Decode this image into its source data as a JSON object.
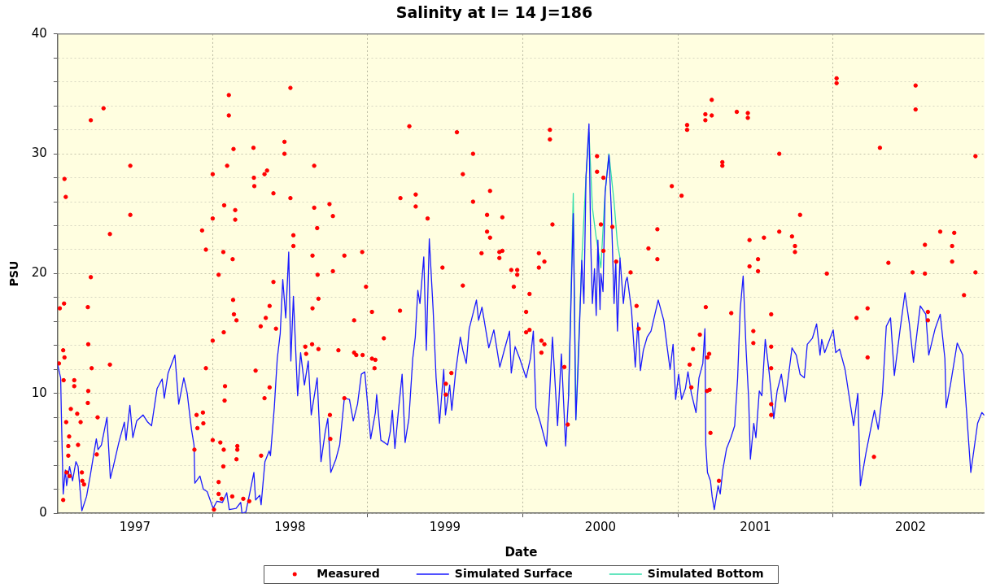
{
  "chart_data": {
    "type": "line",
    "title": "Salinity at I= 14 J=186",
    "xlabel": "Date",
    "ylabel": "PSU",
    "xlim": [
      "1997-01-01",
      "2002-12-23"
    ],
    "xticks": [
      {
        "value": "1997-07-02",
        "label": "1997"
      },
      {
        "value": "1998-01-01",
        "label": null
      },
      {
        "value": "1998-07-02",
        "label": "1998"
      },
      {
        "value": "1999-01-01",
        "label": null
      },
      {
        "value": "1999-07-02",
        "label": "1999"
      },
      {
        "value": "2000-01-01",
        "label": null
      },
      {
        "value": "2000-07-02",
        "label": "2000"
      },
      {
        "value": "2001-01-01",
        "label": null
      },
      {
        "value": "2001-07-02",
        "label": "2001"
      },
      {
        "value": "2002-01-01",
        "label": null
      },
      {
        "value": "2002-07-02",
        "label": "2002"
      }
    ],
    "ylim": [
      0,
      40
    ],
    "yticks": [
      0,
      {
        "value": 2,
        "label": null
      },
      {
        "value": 4,
        "label": null
      },
      {
        "value": 6,
        "label": null
      },
      {
        "value": 8,
        "label": null
      },
      10,
      {
        "value": 12,
        "label": null
      },
      {
        "value": 14,
        "label": null
      },
      {
        "value": 16,
        "label": null
      },
      {
        "value": 18,
        "label": null
      },
      20,
      {
        "value": 22,
        "label": null
      },
      {
        "value": 24,
        "label": null
      },
      {
        "value": 26,
        "label": null
      },
      {
        "value": 28,
        "label": null
      },
      30,
      {
        "value": 32,
        "label": null
      },
      {
        "value": 34,
        "label": null
      },
      {
        "value": 36,
        "label": null
      },
      {
        "value": 38,
        "label": null
      },
      40
    ],
    "grid": true,
    "legend": "bottom",
    "series": [
      {
        "name": "Measured",
        "type": "scatter",
        "marker": "circle",
        "color": "#ff0000",
        "x": [
          "1997-01-04",
          "1997-01-06",
          "1997-01-14",
          "1997-01-14",
          "1997-01-15",
          "1997-01-16",
          "1997-01-17",
          "1997-01-17",
          "1997-01-20",
          "1997-01-21",
          "1997-01-22",
          "1997-01-26",
          "1997-01-26",
          "1997-01-28",
          "1997-01-29",
          "1997-02-01",
          "1997-02-09",
          "1997-02-09",
          "1997-02-16",
          "1997-02-18",
          "1997-02-24",
          "1997-02-27",
          "1997-02-28",
          "1997-03-04",
          "1997-03-13",
          "1997-03-13",
          "1997-03-14",
          "1997-03-14",
          "1997-03-20",
          "1997-03-20",
          "1997-03-22",
          "1997-04-03",
          "1997-04-05",
          "1997-04-19",
          "1997-05-04",
          "1997-05-04",
          "1997-06-21",
          "1997-06-21",
          "1997-11-19",
          "1997-11-24",
          "1997-11-26",
          "1997-12-07",
          "1997-12-09",
          "1997-12-10",
          "1997-12-16",
          "1997-12-16",
          "1998-01-01",
          "1998-01-01",
          "1998-01-01",
          "1998-01-01",
          "1998-01-04",
          "1998-01-15",
          "1998-01-15",
          "1998-01-15",
          "1998-01-19",
          "1998-01-22",
          "1998-01-26",
          "1998-01-26",
          "1998-01-27",
          "1998-01-27",
          "1998-01-28",
          "1998-01-29",
          "1998-01-30",
          "1998-02-04",
          "1998-02-08",
          "1998-02-08",
          "1998-02-16",
          "1998-02-17",
          "1998-02-18",
          "1998-02-19",
          "1998-02-20",
          "1998-02-23",
          "1998-02-23",
          "1998-02-26",
          "1998-02-26",
          "1998-02-28",
          "1998-02-28",
          "1998-03-14",
          "1998-03-28",
          "1998-04-07",
          "1998-04-08",
          "1998-04-09",
          "1998-04-12",
          "1998-04-24",
          "1998-04-25",
          "1998-05-03",
          "1998-05-03",
          "1998-05-06",
          "1998-05-09",
          "1998-05-15",
          "1998-05-15",
          "1998-05-24",
          "1998-05-24",
          "1998-05-30",
          "1998-06-19",
          "1998-06-19",
          "1998-07-03",
          "1998-07-03",
          "1998-07-10",
          "1998-07-10",
          "1998-08-07",
          "1998-08-09",
          "1998-08-23",
          "1998-08-24",
          "1998-08-24",
          "1998-08-28",
          "1998-08-28",
          "1998-09-04",
          "1998-09-05",
          "1998-09-07",
          "1998-09-07",
          "1998-10-03",
          "1998-10-04",
          "1998-10-05",
          "1998-10-11",
          "1998-10-11",
          "1998-10-24",
          "1998-11-07",
          "1998-11-07",
          "1998-11-30",
          "1998-11-30",
          "1998-12-05",
          "1998-12-19",
          "1998-12-20",
          "1998-12-28",
          "1999-01-11",
          "1999-01-11",
          "1999-01-17",
          "1999-01-19",
          "1999-02-08",
          "1999-03-18",
          "1999-03-19",
          "1999-04-09",
          "1999-04-24",
          "1999-04-24",
          "1999-05-22",
          "1999-06-26",
          "1999-07-04",
          "1999-07-04",
          "1999-07-17",
          "1999-07-30",
          "1999-08-13",
          "1999-08-13",
          "1999-09-06",
          "1999-09-06",
          "1999-09-26",
          "1999-10-09",
          "1999-10-09",
          "1999-10-16",
          "1999-10-16",
          "1999-11-07",
          "1999-11-07",
          "1999-11-14",
          "1999-11-14",
          "1999-12-05",
          "1999-12-11",
          "1999-12-19",
          "1999-12-19",
          "2000-01-09",
          "2000-01-09",
          "2000-01-17",
          "2000-01-17",
          "2000-02-08",
          "2000-02-08",
          "2000-02-14",
          "2000-02-14",
          "2000-02-21",
          "2000-02-21",
          "2000-03-05",
          "2000-03-05",
          "2000-03-11",
          "2000-04-08",
          "2000-04-16",
          "2000-06-24",
          "2000-06-24",
          "2000-07-03",
          "2000-07-09",
          "2000-07-09",
          "2000-07-30",
          "2000-08-08",
          "2000-09-11",
          "2000-09-25",
          "2000-09-30",
          "2000-10-23",
          "2000-11-13",
          "2000-11-13",
          "2000-12-17",
          "2001-01-09",
          "2001-01-22",
          "2001-01-22",
          "2001-01-28",
          "2001-02-01",
          "2001-02-05",
          "2001-02-21",
          "2001-03-06",
          "2001-03-06",
          "2001-03-07",
          "2001-03-10",
          "2001-03-11",
          "2001-03-15",
          "2001-03-16",
          "2001-03-18",
          "2001-03-21",
          "2001-03-21",
          "2001-04-07",
          "2001-04-15",
          "2001-04-15",
          "2001-05-06",
          "2001-05-19",
          "2001-06-14",
          "2001-06-14",
          "2001-06-18",
          "2001-06-18",
          "2001-06-27",
          "2001-06-27",
          "2001-07-08",
          "2001-07-08",
          "2001-07-22",
          "2001-08-08",
          "2001-08-08",
          "2001-08-08",
          "2001-08-08",
          "2001-08-08",
          "2001-08-27",
          "2001-08-27",
          "2001-09-26",
          "2001-10-03",
          "2001-10-03",
          "2001-10-15",
          "2001-12-17",
          "2002-01-09",
          "2002-01-09",
          "2002-02-25",
          "2002-03-23",
          "2002-03-23",
          "2002-04-07",
          "2002-04-21",
          "2002-05-11",
          "2002-07-07",
          "2002-07-14",
          "2002-07-14",
          "2002-08-05",
          "2002-08-05",
          "2002-08-12",
          "2002-08-12",
          "2002-09-10",
          "2002-10-08",
          "2002-10-08",
          "2002-10-13",
          "2002-11-05",
          "2002-12-02",
          "2002-12-02"
        ],
        "values": [
          12.5,
          17.1,
          13.6,
          1.1,
          11.1,
          17.5,
          27.9,
          13.0,
          26.4,
          7.6,
          3.4,
          5.6,
          4.8,
          6.4,
          3.1,
          8.7,
          11.1,
          10.6,
          8.3,
          5.7,
          7.6,
          3.4,
          2.7,
          2.4,
          17.2,
          9.2,
          14.1,
          10.2,
          32.8,
          19.7,
          12.1,
          4.9,
          8.0,
          33.8,
          23.3,
          12.4,
          29.0,
          24.9,
          5.3,
          8.2,
          7.1,
          23.6,
          8.4,
          7.5,
          22.0,
          12.1,
          28.3,
          24.6,
          14.4,
          6.1,
          0.3,
          19.9,
          2.6,
          1.6,
          5.9,
          1.2,
          21.8,
          3.9,
          5.3,
          15.1,
          25.7,
          9.4,
          10.6,
          29.0,
          34.9,
          33.2,
          1.4,
          21.2,
          17.8,
          30.4,
          16.6,
          25.3,
          24.5,
          16.1,
          4.5,
          5.3,
          5.6,
          1.2,
          1.0,
          30.5,
          28.0,
          27.3,
          11.9,
          15.6,
          4.8,
          28.3,
          9.6,
          16.3,
          28.6,
          10.5,
          17.3,
          26.7,
          19.3,
          15.4,
          31.0,
          30.0,
          35.5,
          26.3,
          23.2,
          22.3,
          13.9,
          13.3,
          14.1,
          17.1,
          21.5,
          29.0,
          25.5,
          23.8,
          19.9,
          17.9,
          13.7,
          25.8,
          8.2,
          6.2,
          24.8,
          20.2,
          13.6,
          21.5,
          9.6,
          16.1,
          13.4,
          13.2,
          21.8,
          13.2,
          18.9,
          16.8,
          12.9,
          12.1,
          12.8,
          14.6,
          16.9,
          26.3,
          32.3,
          26.6,
          25.6,
          24.6,
          20.5,
          10.8,
          9.9,
          11.7,
          31.8,
          19.0,
          28.3,
          30.0,
          26.0,
          21.7,
          24.9,
          23.5,
          26.9,
          23.0,
          21.8,
          21.3,
          24.7,
          21.9,
          20.3,
          18.9,
          20.3,
          19.9,
          16.8,
          15.1,
          18.3,
          15.3,
          21.7,
          20.5,
          14.4,
          13.4,
          21.0,
          14.1,
          32.0,
          31.2,
          24.1,
          12.2,
          7.4,
          29.8,
          28.5,
          24.1,
          28.0,
          21.9,
          23.9,
          21.0,
          20.1,
          17.3,
          15.4,
          22.1,
          23.7,
          21.2,
          27.3,
          26.5,
          32.4,
          32.0,
          12.4,
          10.5,
          13.7,
          14.9,
          33.3,
          32.8,
          17.2,
          10.2,
          13.0,
          13.3,
          10.3,
          6.7,
          34.5,
          33.2,
          2.7,
          29.3,
          29.0,
          16.7,
          33.5,
          33.4,
          33.0,
          22.8,
          20.6,
          15.2,
          14.2,
          21.2,
          20.2,
          23.0,
          16.6,
          13.9,
          12.1,
          9.1,
          8.2,
          30.0,
          23.5,
          23.1,
          22.3,
          21.8,
          24.9,
          20.0,
          36.3,
          35.9,
          16.3,
          17.1,
          13.0,
          4.7,
          30.5,
          20.9,
          20.1,
          35.7,
          33.7,
          22.4,
          20.0,
          16.8,
          16.1,
          23.5,
          22.3,
          21.0,
          23.4,
          18.2,
          29.8,
          20.1
        ]
      },
      {
        "name": "Simulated Surface",
        "color": "#1a1aff",
        "x": [
          "1997-01-01",
          "1997-01-08",
          "1997-01-10",
          "1997-01-14",
          "1997-01-19",
          "1997-01-22",
          "1997-01-29",
          "1997-02-05",
          "1997-02-13",
          "1997-02-18",
          "1997-02-27",
          "1997-03-10",
          "1997-03-19",
          "1997-03-25",
          "1997-04-02",
          "1997-04-06",
          "1997-04-14",
          "1997-04-27",
          "1997-05-05",
          "1997-05-12",
          "1997-05-25",
          "1997-06-07",
          "1997-06-11",
          "1997-06-20",
          "1997-06-27",
          "1997-07-06",
          "1997-07-21",
          "1997-08-01",
          "1997-08-10",
          "1997-08-23",
          "1997-09-04",
          "1997-09-09",
          "1997-09-18",
          "1997-10-04",
          "1997-10-13",
          "1997-10-25",
          "1997-11-02",
          "1997-11-12",
          "1997-11-18",
          "1997-11-20",
          "1997-12-02",
          "1997-12-10",
          "1997-12-19",
          "1998-01-02",
          "1998-01-11",
          "1998-01-24",
          "1998-02-03",
          "1998-02-09",
          "1998-02-25",
          "1998-03-08",
          "1998-03-11",
          "1998-03-20",
          "1998-03-30",
          "1998-04-08",
          "1998-04-12",
          "1998-04-22",
          "1998-04-25",
          "1998-05-04",
          "1998-05-14",
          "1998-05-17",
          "1998-05-26",
          "1998-06-02",
          "1998-06-09",
          "1998-06-15",
          "1998-06-22",
          "1998-06-29",
          "1998-07-04",
          "1998-07-10",
          "1998-07-20",
          "1998-07-27",
          "1998-08-05",
          "1998-08-14",
          "1998-08-21",
          "1998-09-04",
          "1998-09-13",
          "1998-09-23",
          "1998-09-29",
          "1998-10-06",
          "1998-10-18",
          "1998-10-27",
          "1998-11-07",
          "1998-11-19",
          "1998-11-28",
          "1998-12-08",
          "1998-12-17",
          "1998-12-25",
          "1999-01-02",
          "1999-01-08",
          "1999-01-19",
          "1999-01-22",
          "1999-02-01",
          "1999-02-17",
          "1999-02-23",
          "1999-02-28",
          "1999-03-06",
          "1999-03-15",
          "1999-03-23",
          "1999-03-30",
          "1999-04-08",
          "1999-04-17",
          "1999-04-23",
          "1999-04-29",
          "1999-05-04",
          "1999-05-13",
          "1999-05-19",
          "1999-05-26",
          "1999-06-04",
          "1999-06-11",
          "1999-06-19",
          "1999-06-29",
          "1999-07-03",
          "1999-07-13",
          "1999-07-18",
          "1999-07-27",
          "1999-08-07",
          "1999-08-13",
          "1999-08-21",
          "1999-08-28",
          "1999-09-14",
          "1999-09-19",
          "1999-09-27",
          "1999-10-13",
          "1999-10-25",
          "1999-11-08",
          "1999-11-20",
          "1999-12-01",
          "1999-12-05",
          "1999-12-14",
          "1999-12-25",
          "2000-01-09",
          "2000-01-19",
          "2000-01-26",
          "2000-02-01",
          "2000-02-12",
          "2000-02-26",
          "2000-03-04",
          "2000-03-11",
          "2000-03-23",
          "2000-04-01",
          "2000-04-11",
          "2000-04-18",
          "2000-04-29",
          "2000-05-05",
          "2000-05-10",
          "2000-05-19",
          "2000-05-24",
          "2000-05-29",
          "2000-06-05",
          "2000-06-09",
          "2000-06-13",
          "2000-06-18",
          "2000-06-22",
          "2000-06-26",
          "2000-07-01",
          "2000-07-03",
          "2000-07-08",
          "2000-07-13",
          "2000-07-22",
          "2000-07-28",
          "2000-08-03",
          "2000-08-07",
          "2000-08-11",
          "2000-08-17",
          "2000-08-25",
          "2000-08-30",
          "2000-09-03",
          "2000-09-13",
          "2000-09-22",
          "2000-09-28",
          "2000-10-04",
          "2000-10-11",
          "2000-10-20",
          "2000-10-29",
          "2000-11-15",
          "2000-11-28",
          "2000-12-07",
          "2000-12-13",
          "2000-12-20",
          "2000-12-26",
          "2001-01-02",
          "2001-01-09",
          "2001-01-18",
          "2001-01-24",
          "2001-02-01",
          "2001-02-12",
          "2001-02-19",
          "2001-02-28",
          "2001-03-05",
          "2001-03-07",
          "2001-03-11",
          "2001-03-18",
          "2001-03-22",
          "2001-03-27",
          "2001-04-05",
          "2001-04-10",
          "2001-04-16",
          "2001-04-25",
          "2001-05-05",
          "2001-05-14",
          "2001-05-21",
          "2001-05-27",
          "2001-06-03",
          "2001-06-10",
          "2001-06-16",
          "2001-06-20",
          "2001-06-28",
          "2001-07-03",
          "2001-07-11",
          "2001-07-17",
          "2001-07-25",
          "2001-08-03",
          "2001-08-14",
          "2001-08-22",
          "2001-09-01",
          "2001-09-10",
          "2001-09-26",
          "2001-10-06",
          "2001-10-15",
          "2001-10-25",
          "2001-11-01",
          "2001-11-13",
          "2001-11-23",
          "2001-12-01",
          "2001-12-05",
          "2001-12-12",
          "2002-01-01",
          "2002-01-07",
          "2002-01-16",
          "2002-01-29",
          "2002-02-18",
          "2002-02-28",
          "2002-03-06",
          "2002-03-19",
          "2002-04-08",
          "2002-04-17",
          "2002-04-27",
          "2002-05-06",
          "2002-05-16",
          "2002-05-25",
          "2002-06-07",
          "2002-06-19",
          "2002-06-29",
          "2002-07-09",
          "2002-07-25",
          "2002-08-07",
          "2002-08-14",
          "2002-08-29",
          "2002-09-10",
          "2002-09-21",
          "2002-09-24",
          "2002-10-04",
          "2002-10-20",
          "2002-11-02",
          "2002-11-08",
          "2002-11-21",
          "2002-12-07",
          "2002-12-17",
          "2002-12-22"
        ],
        "values": [
          12.4,
          11.3,
          7.7,
          1.6,
          3.6,
          2.3,
          3.9,
          2.7,
          4.3,
          3.9,
          0.2,
          1.4,
          3.2,
          4.5,
          6.2,
          5.3,
          5.7,
          8.0,
          2.9,
          3.9,
          5.9,
          7.6,
          6.1,
          9.0,
          6.3,
          7.7,
          8.2,
          7.6,
          7.3,
          10.4,
          11.2,
          9.6,
          11.7,
          13.2,
          9.1,
          11.3,
          10.0,
          7.0,
          5.7,
          2.5,
          3.1,
          2.0,
          1.8,
          0.4,
          1.0,
          0.9,
          1.7,
          0.3,
          0.4,
          0.9,
          0.0,
          0.1,
          1.8,
          3.4,
          1.1,
          1.5,
          0.7,
          4.3,
          5.2,
          4.8,
          8.8,
          12.9,
          15.0,
          19.5,
          16.3,
          21.8,
          12.7,
          18.1,
          9.8,
          13.4,
          10.7,
          12.7,
          8.2,
          11.3,
          4.3,
          6.8,
          7.9,
          3.4,
          4.5,
          5.7,
          9.6,
          9.5,
          7.7,
          9.1,
          11.6,
          11.8,
          8.6,
          6.2,
          8.4,
          9.9,
          6.1,
          5.7,
          6.8,
          8.6,
          5.4,
          8.8,
          11.6,
          5.9,
          7.9,
          12.9,
          14.7,
          18.6,
          17.5,
          21.4,
          13.6,
          22.9,
          17.0,
          11.3,
          7.5,
          12.0,
          8.2,
          10.7,
          8.6,
          11.8,
          14.7,
          13.6,
          12.5,
          15.4,
          17.8,
          16.1,
          17.2,
          13.8,
          15.3,
          12.2,
          13.8,
          15.2,
          11.7,
          13.9,
          12.9,
          11.3,
          12.9,
          15.2,
          8.8,
          7.5,
          5.6,
          9.8,
          14.7,
          7.3,
          13.3,
          5.6,
          9.8,
          25.0,
          7.8,
          11.8,
          21.1,
          17.5,
          28.1,
          32.5,
          22.7,
          17.5,
          20.4,
          16.5,
          22.8,
          17.0,
          20.0,
          18.5,
          26.8,
          29.9,
          24.9,
          17.5,
          21.1,
          15.2,
          21.3,
          17.5,
          19.3,
          19.7,
          17.0,
          12.2,
          15.9,
          11.9,
          13.6,
          14.7,
          15.2,
          17.8,
          16.1,
          13.6,
          12.0,
          14.1,
          9.5,
          11.6,
          9.5,
          10.4,
          11.8,
          10.0,
          8.4,
          11.3,
          12.5,
          15.4,
          5.7,
          3.4,
          2.7,
          1.4,
          0.3,
          2.3,
          1.6,
          3.6,
          5.4,
          6.3,
          7.3,
          11.3,
          17.0,
          19.8,
          13.6,
          9.5,
          4.5,
          7.5,
          6.3,
          10.2,
          9.8,
          14.5,
          11.8,
          7.9,
          10.2,
          11.6,
          9.3,
          13.8,
          13.2,
          11.6,
          11.3,
          14.1,
          14.6,
          15.8,
          13.2,
          14.5,
          13.4,
          15.3,
          13.4,
          13.7,
          12.0,
          7.3,
          10.0,
          2.3,
          5.0,
          8.6,
          7.0,
          10.0,
          15.6,
          16.3,
          11.5,
          15.2,
          18.4,
          15.9,
          12.6,
          17.3,
          16.6,
          13.2,
          15.4,
          16.6,
          12.9,
          8.8,
          10.7,
          14.2,
          13.2,
          10.0,
          3.4,
          7.5,
          8.4,
          8.2
        ]
      },
      {
        "name": "Simulated Bottom",
        "color": "#33ddaa",
        "x": [
          "2000-04-18",
          "2000-04-29",
          "2000-05-05",
          "2000-05-19",
          "2000-05-29",
          "2000-06-05",
          "2000-06-13",
          "2000-06-22",
          "2000-07-03",
          "2000-07-13",
          "2000-07-22",
          "2000-08-03",
          "2000-08-11",
          "2000-08-17"
        ],
        "values": [
          9.8,
          26.7,
          7.8,
          21.1,
          28.1,
          31.8,
          25.5,
          23.0,
          20.5,
          26.8,
          30.0,
          26.0,
          22.5,
          21.3
        ]
      }
    ]
  }
}
